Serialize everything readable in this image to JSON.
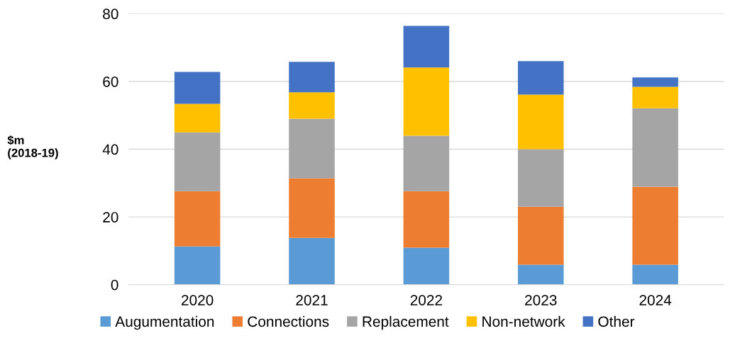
{
  "chart_data": {
    "type": "bar",
    "stacked": true,
    "ylabel": "$m\n(2018-19)",
    "categories": [
      "2020",
      "2021",
      "2022",
      "2023",
      "2024"
    ],
    "series": [
      {
        "name": "Augumentation",
        "color": "#5b9bd5",
        "values": [
          11.3,
          13.8,
          10.9,
          5.9,
          5.9
        ]
      },
      {
        "name": "Connections",
        "color": "#ed7d31",
        "values": [
          16.3,
          17.6,
          16.7,
          17.1,
          23.0
        ]
      },
      {
        "name": "Replacement",
        "color": "#a5a5a5",
        "values": [
          17.4,
          17.6,
          16.4,
          17.0,
          23.2
        ]
      },
      {
        "name": "Non-network",
        "color": "#ffc000",
        "values": [
          8.4,
          7.8,
          20.1,
          16.1,
          6.3
        ]
      },
      {
        "name": "Other",
        "color": "#4472c4",
        "values": [
          9.4,
          9.0,
          12.3,
          9.9,
          2.8
        ]
      }
    ],
    "ylim": [
      0,
      80
    ],
    "yticks": [
      0,
      20,
      40,
      60,
      80
    ],
    "grid": "y",
    "legend": "bottom"
  }
}
